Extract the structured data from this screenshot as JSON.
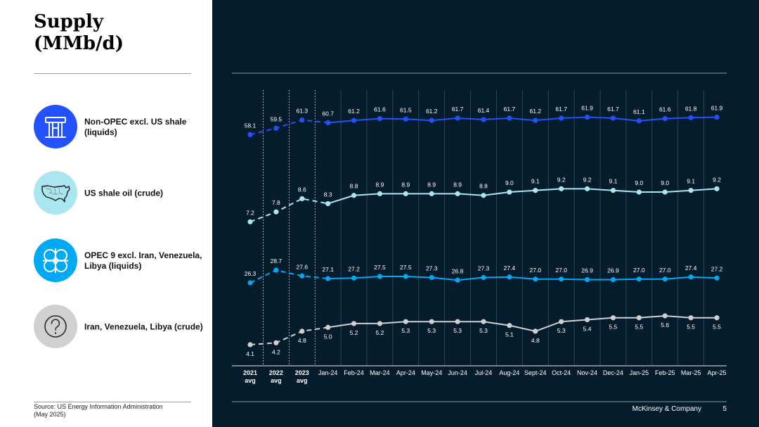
{
  "title": [
    "Supply",
    "(MMb/d)"
  ],
  "legend": [
    {
      "label": "Non-OPEC excl. US shale (liquids)",
      "icon": "oil-pump-jack-icon",
      "color": "#2251ff"
    },
    {
      "label": "US shale oil (crude)",
      "icon": "us-map-icon",
      "color": "#aae6f0"
    },
    {
      "label": "OPEC 9 excl. Iran, Venezuela, Libya (liquids)",
      "icon": "opec-logo-icon",
      "color": "#00a9f4"
    },
    {
      "label": "Iran, Venezuela, Libya (crude)",
      "icon": "question-mark-icon",
      "color": "#d0d0d0"
    }
  ],
  "source": "Source: US Energy Information Administration\n(May 2025)",
  "footer": {
    "company": "McKinsey & Company",
    "page": "5"
  },
  "chart_data": {
    "type": "line",
    "categories": [
      "2021 avg",
      "2022 avg",
      "2023 avg",
      "Jan-24",
      "Feb-24",
      "Mar-24",
      "Apr-24",
      "May-24",
      "Jun-24",
      "Jul-24",
      "Aug-24",
      "Sept-24",
      "Oct-24",
      "Nov-24",
      "Dec-24",
      "Jan-25",
      "Feb-25",
      "Mar-25",
      "Apr-25"
    ],
    "annual_categories": 3,
    "series": [
      {
        "name": "Non-OPEC excl. US shale (liquids)",
        "color": "#2251ff",
        "values": [
          58.1,
          59.5,
          61.3,
          60.7,
          61.2,
          61.6,
          61.5,
          61.2,
          61.7,
          61.4,
          61.7,
          61.2,
          61.7,
          61.9,
          61.7,
          61.1,
          61.6,
          61.8,
          61.9
        ]
      },
      {
        "name": "US shale oil (crude)",
        "color": "#aae6f0",
        "values": [
          7.2,
          7.8,
          8.6,
          8.3,
          8.8,
          8.9,
          8.9,
          8.9,
          8.9,
          8.8,
          9.0,
          9.1,
          9.2,
          9.2,
          9.1,
          9.0,
          9.0,
          9.1,
          9.2
        ]
      },
      {
        "name": "OPEC 9 excl. Iran, Venezuela, Libya (liquids)",
        "color": "#00a9f4",
        "values": [
          26.3,
          28.7,
          27.6,
          27.1,
          27.2,
          27.5,
          27.5,
          27.3,
          26.8,
          27.3,
          27.4,
          27.0,
          27.0,
          26.9,
          26.9,
          27.0,
          27.0,
          27.4,
          27.2
        ]
      },
      {
        "name": "Iran, Venezuela, Libya (crude)",
        "color": "#d0d0d0",
        "values": [
          4.1,
          4.2,
          4.8,
          5.0,
          5.2,
          5.2,
          5.3,
          5.3,
          5.3,
          5.3,
          5.1,
          4.8,
          5.3,
          5.4,
          5.5,
          5.5,
          5.6,
          5.5,
          5.5
        ]
      }
    ],
    "grid": true,
    "legend_position": "left"
  }
}
